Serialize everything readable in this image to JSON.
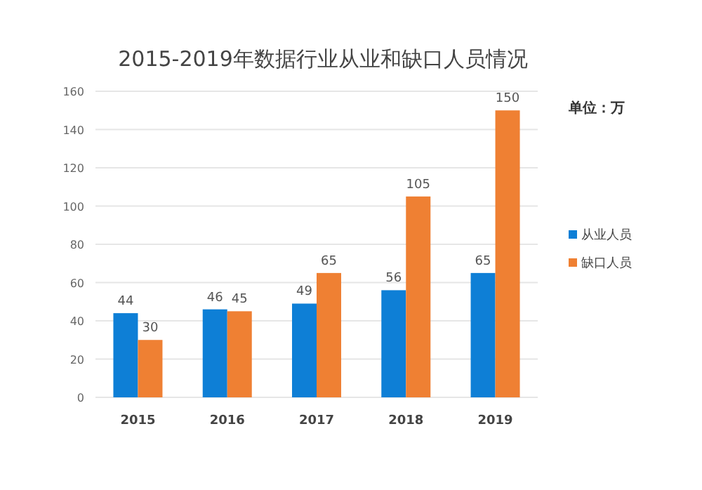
{
  "chart_data": {
    "type": "bar",
    "title": "2015-2019年数据行业从业和缺口人员情况",
    "categories": [
      "2015",
      "2016",
      "2017",
      "2018",
      "2019"
    ],
    "series": [
      {
        "name": "从业人员",
        "color": "#0e7fd6",
        "values": [
          44,
          46,
          49,
          56,
          65
        ]
      },
      {
        "name": "缺口人员",
        "color": "#ef8033",
        "values": [
          30,
          45,
          65,
          105,
          150
        ]
      }
    ],
    "ylim": [
      0,
      160
    ],
    "yticks": [
      0,
      20,
      40,
      60,
      80,
      100,
      120,
      140,
      160
    ],
    "grid": "y",
    "legend": "right",
    "data_labels": true,
    "annotations": [
      "单位：万"
    ]
  }
}
